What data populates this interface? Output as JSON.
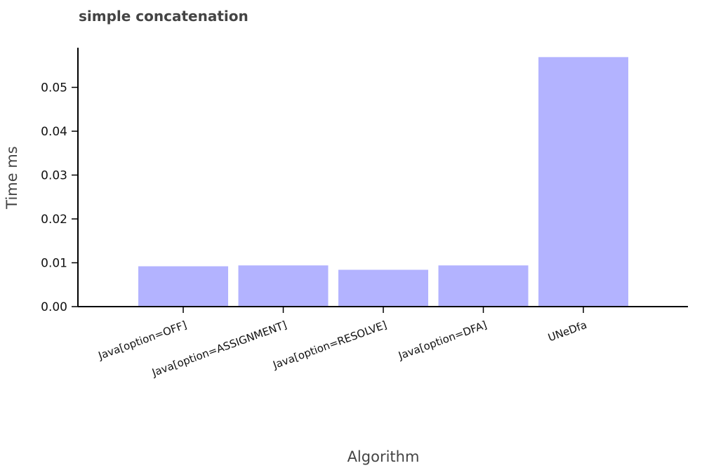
{
  "chart_data": {
    "type": "bar",
    "title": "simple concatenation",
    "xlabel": "Algorithm",
    "ylabel": "Time ms",
    "categories": [
      "Java[option=OFF]",
      "Java[option=ASSIGNMENT]",
      "Java[option=RESOLVE]",
      "Java[option=DFA]",
      "UNeDfa"
    ],
    "values": [
      0.0092,
      0.0094,
      0.0084,
      0.0094,
      0.0569
    ],
    "ylim": [
      0,
      0.059
    ],
    "yticks": [
      "0.00",
      "0.01",
      "0.02",
      "0.03",
      "0.04",
      "0.05"
    ],
    "bar_color": "#b3b3ff",
    "grid": false,
    "legend": "none"
  }
}
